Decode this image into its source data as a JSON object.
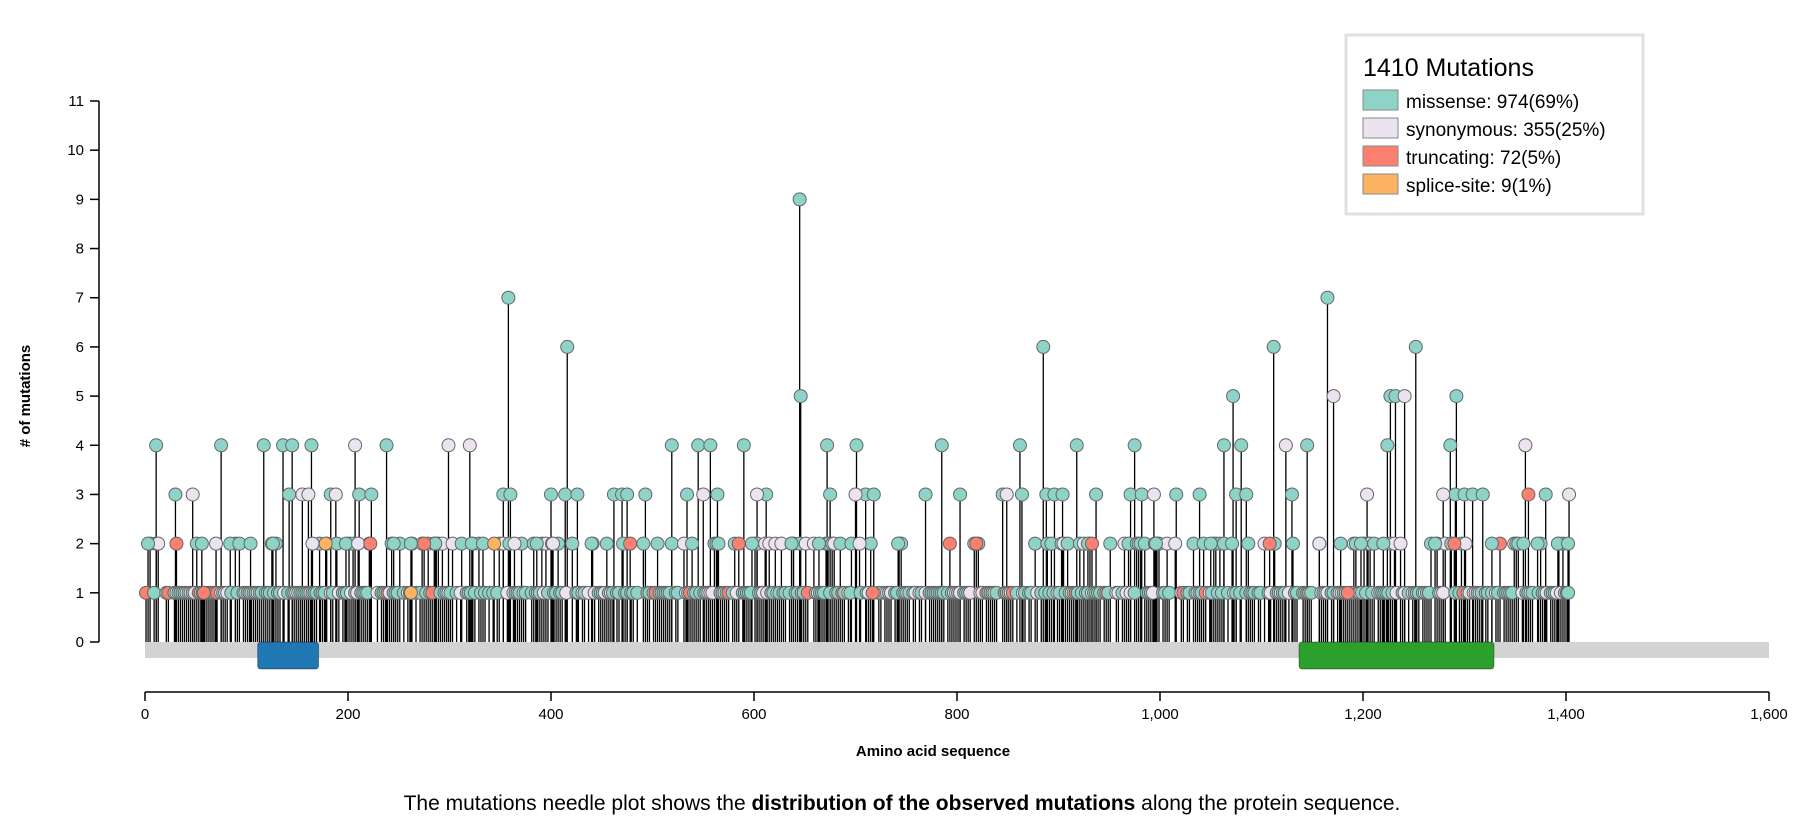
{
  "chart_data": {
    "type": "needle",
    "title": "",
    "xlabel": "Amino acid sequence",
    "ylabel": "# of mutations",
    "xlim": [
      0,
      1600
    ],
    "ylim": [
      0,
      11
    ],
    "x_ticks": [
      "0",
      "200",
      "400",
      "600",
      "800",
      "1,000",
      "1,200",
      "1,400",
      "1,600"
    ],
    "y_ticks": [
      "0",
      "1",
      "2",
      "3",
      "4",
      "5",
      "6",
      "7",
      "8",
      "9",
      "10",
      "11"
    ],
    "protein_length": 1600,
    "domains": [
      {
        "start": 111,
        "end": 171,
        "color": "#1f77b4"
      },
      {
        "start": 1137,
        "end": 1329,
        "color": "#2ca02c"
      }
    ],
    "legend": {
      "title": "1410 Mutations",
      "position": "top-right",
      "entries": [
        {
          "label": "missense: 974(69%)",
          "category": "missense",
          "color": "#8dd3c7"
        },
        {
          "label": "synonymous: 355(25%)",
          "category": "synonymous",
          "color": "#ece3f0"
        },
        {
          "label": "truncating: 72(5%)",
          "category": "truncating",
          "color": "#fb8072"
        },
        {
          "label": "splice-site: 9(1%)",
          "category": "splice-site",
          "color": "#fdb462"
        }
      ]
    },
    "series": [
      {
        "name": "missense",
        "color": "#8dd3c7",
        "points": [
          [
            3,
            2
          ],
          [
            11,
            4
          ],
          [
            30,
            3
          ],
          [
            56,
            2
          ],
          [
            75,
            4
          ],
          [
            84,
            2
          ],
          [
            93,
            2
          ],
          [
            104,
            2
          ],
          [
            117,
            4
          ],
          [
            126,
            2
          ],
          [
            136,
            4
          ],
          [
            145,
            4
          ],
          [
            142,
            3
          ],
          [
            164,
            4
          ],
          [
            172,
            2
          ],
          [
            183,
            3
          ],
          [
            198,
            2
          ],
          [
            211,
            3
          ],
          [
            223,
            3
          ],
          [
            238,
            4
          ],
          [
            245,
            2
          ],
          [
            262,
            2
          ],
          [
            286,
            2
          ],
          [
            312,
            2
          ],
          [
            322,
            2
          ],
          [
            333,
            2
          ],
          [
            353,
            3
          ],
          [
            358,
            7
          ],
          [
            360,
            3
          ],
          [
            386,
            2
          ],
          [
            400,
            3
          ],
          [
            416,
            6
          ],
          [
            414,
            3
          ],
          [
            426,
            3
          ],
          [
            440,
            2
          ],
          [
            462,
            3
          ],
          [
            470,
            3
          ],
          [
            475,
            3
          ],
          [
            493,
            3
          ],
          [
            519,
            4
          ],
          [
            534,
            3
          ],
          [
            545,
            4
          ],
          [
            557,
            4
          ],
          [
            564,
            3
          ],
          [
            590,
            4
          ],
          [
            598,
            2
          ],
          [
            612,
            3
          ],
          [
            637,
            2
          ],
          [
            645,
            9
          ],
          [
            646,
            5
          ],
          [
            664,
            2
          ],
          [
            672,
            4
          ],
          [
            675,
            3
          ],
          [
            696,
            2
          ],
          [
            701,
            4
          ],
          [
            710,
            3
          ],
          [
            718,
            3
          ],
          [
            742,
            2
          ],
          [
            769,
            3
          ],
          [
            785,
            4
          ],
          [
            803,
            3
          ],
          [
            845,
            3
          ],
          [
            862,
            4
          ],
          [
            864,
            3
          ],
          [
            885,
            6
          ],
          [
            888,
            3
          ],
          [
            896,
            3
          ],
          [
            904,
            3
          ],
          [
            918,
            4
          ],
          [
            929,
            2
          ],
          [
            937,
            3
          ],
          [
            975,
            4
          ],
          [
            971,
            3
          ],
          [
            982,
            3
          ],
          [
            996,
            2
          ],
          [
            1016,
            3
          ],
          [
            1039,
            3
          ],
          [
            1050,
            2
          ],
          [
            1063,
            4
          ],
          [
            1072,
            5
          ],
          [
            1075,
            3
          ],
          [
            1080,
            4
          ],
          [
            1085,
            3
          ],
          [
            1112,
            6
          ],
          [
            1130,
            3
          ],
          [
            1145,
            4
          ],
          [
            1165,
            7
          ],
          [
            1178,
            2
          ],
          [
            1198,
            2
          ],
          [
            1220,
            2
          ],
          [
            1224,
            4
          ],
          [
            1227,
            5
          ],
          [
            1232,
            5
          ],
          [
            1252,
            6
          ],
          [
            1271,
            2
          ],
          [
            1286,
            4
          ],
          [
            1292,
            5
          ],
          [
            1291,
            3
          ],
          [
            1300,
            3
          ],
          [
            1308,
            3
          ],
          [
            1318,
            3
          ],
          [
            1327,
            2
          ],
          [
            1358,
            2
          ],
          [
            1372,
            2
          ],
          [
            1380,
            3
          ],
          [
            1392,
            2
          ],
          [
            1402,
            2
          ],
          [
            1402,
            1
          ]
        ]
      },
      {
        "name": "synonymous",
        "color": "#ece3f0",
        "points": [
          [
            47,
            3
          ],
          [
            70,
            2
          ],
          [
            155,
            3
          ],
          [
            161,
            3
          ],
          [
            165,
            2
          ],
          [
            188,
            3
          ],
          [
            207,
            4
          ],
          [
            210,
            2
          ],
          [
            299,
            4
          ],
          [
            320,
            4
          ],
          [
            364,
            2
          ],
          [
            402,
            2
          ],
          [
            550,
            3
          ],
          [
            603,
            3
          ],
          [
            700,
            3
          ],
          [
            704,
            2
          ],
          [
            849,
            3
          ],
          [
            994,
            3
          ],
          [
            1124,
            4
          ],
          [
            1171,
            5
          ],
          [
            1204,
            3
          ],
          [
            1241,
            5
          ],
          [
            1279,
            3
          ],
          [
            1360,
            4
          ],
          [
            1403,
            3
          ],
          [
            1157,
            2
          ]
        ]
      },
      {
        "name": "truncating",
        "color": "#fb8072",
        "points": [
          [
            31,
            2
          ],
          [
            58,
            1
          ],
          [
            222,
            2
          ],
          [
            275,
            2
          ],
          [
            478,
            2
          ],
          [
            717,
            1
          ],
          [
            819,
            2
          ],
          [
            933,
            2
          ],
          [
            1108,
            2
          ],
          [
            1290,
            2
          ],
          [
            1363,
            3
          ],
          [
            1185,
            1
          ]
        ]
      },
      {
        "name": "splice-site",
        "color": "#fdb462",
        "points": [
          [
            178,
            2
          ],
          [
            344,
            2
          ],
          [
            262,
            1
          ]
        ]
      }
    ]
  },
  "caption": {
    "pre": "The mutations needle plot shows the ",
    "bold": "distribution of the observed mutations",
    "post": " along the protein sequence."
  }
}
